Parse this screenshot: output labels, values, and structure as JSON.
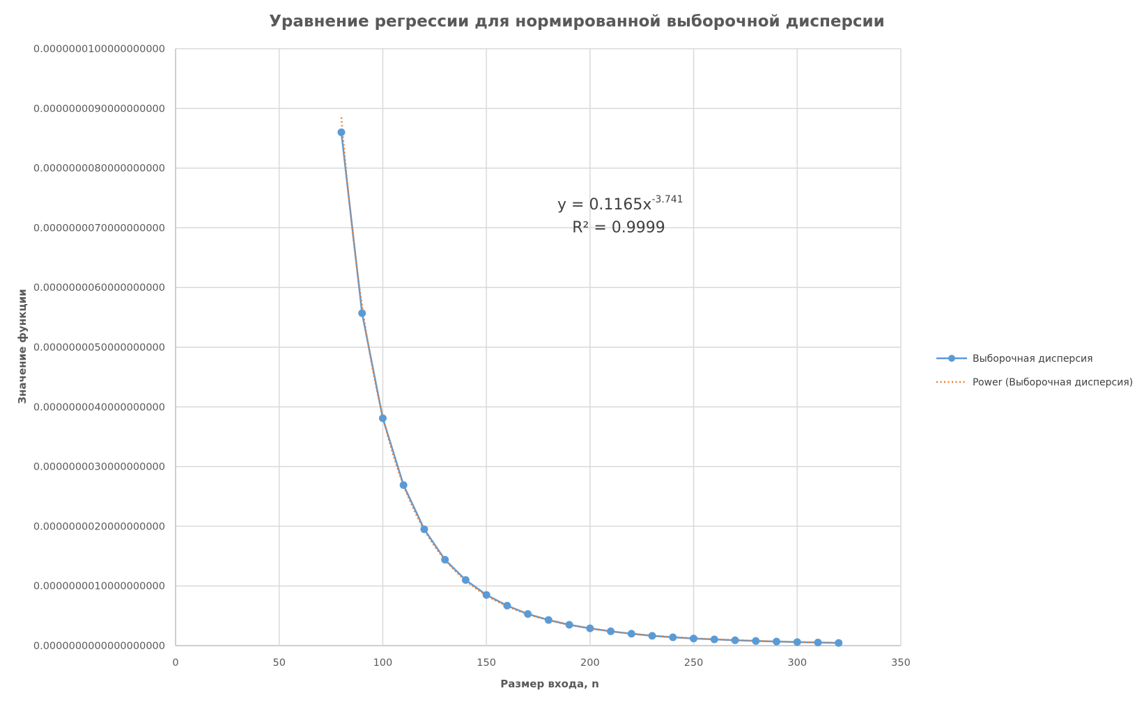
{
  "chart_data": {
    "type": "scatter",
    "title": "Уравнение регрессии для нормированной выборочной дисперсии",
    "xlabel": "Размер входа, n",
    "ylabel": "Значение функции",
    "xlim": [
      0,
      350
    ],
    "ylim": [
      0,
      1e-08
    ],
    "x_ticks": [
      0,
      50,
      100,
      150,
      200,
      250,
      300,
      350
    ],
    "x_tick_labels": [
      "0",
      "50",
      "100",
      "150",
      "200",
      "250",
      "300",
      "350"
    ],
    "y_ticks": [
      0,
      1e-09,
      2e-09,
      3e-09,
      4e-09,
      5e-09,
      6e-09,
      7e-09,
      8e-09,
      9e-09,
      1e-08
    ],
    "y_tick_labels": [
      "0.0000000000000000000",
      "0.0000000010000000000",
      "0.0000000020000000000",
      "0.0000000030000000000",
      "0.0000000040000000000",
      "0.0000000050000000000",
      "0.0000000060000000000",
      "0.0000000070000000000",
      "0.0000000080000000000",
      "0.0000000090000000000",
      "0.0000000100000000000"
    ],
    "grid": true,
    "legend_position": "right",
    "series": [
      {
        "name": "Выборочная дисперсия",
        "style": "line-with-markers",
        "color": "#5b9bd5",
        "x": [
          80,
          90,
          100,
          110,
          120,
          130,
          140,
          150,
          160,
          170,
          180,
          190,
          200,
          210,
          220,
          230,
          240,
          250,
          260,
          270,
          280,
          290,
          300,
          310,
          320
        ],
        "y": [
          8.6e-09,
          5.57e-09,
          3.81e-09,
          2.69e-09,
          1.95e-09,
          1.44e-09,
          1.1e-09,
          8.5e-10,
          6.7e-10,
          5.3e-10,
          4.3e-10,
          3.5e-10,
          2.9e-10,
          2.4e-10,
          2e-10,
          1.65e-10,
          1.4e-10,
          1.2e-10,
          1.05e-10,
          9e-11,
          7.8e-11,
          6.8e-11,
          6e-11,
          5.2e-11,
          4.5e-11
        ]
      },
      {
        "name": "Power (Выборочная дисперсия)",
        "style": "dotted-trendline",
        "color": "#ed7d31",
        "coefficient": 0.1165,
        "exponent": -3.741,
        "x_range": [
          80,
          320
        ]
      }
    ],
    "annotation": {
      "equation_prefix": "y = 0.1165x",
      "equation_exponent": "-3.741",
      "r_squared": "R² = 0.9999"
    }
  }
}
